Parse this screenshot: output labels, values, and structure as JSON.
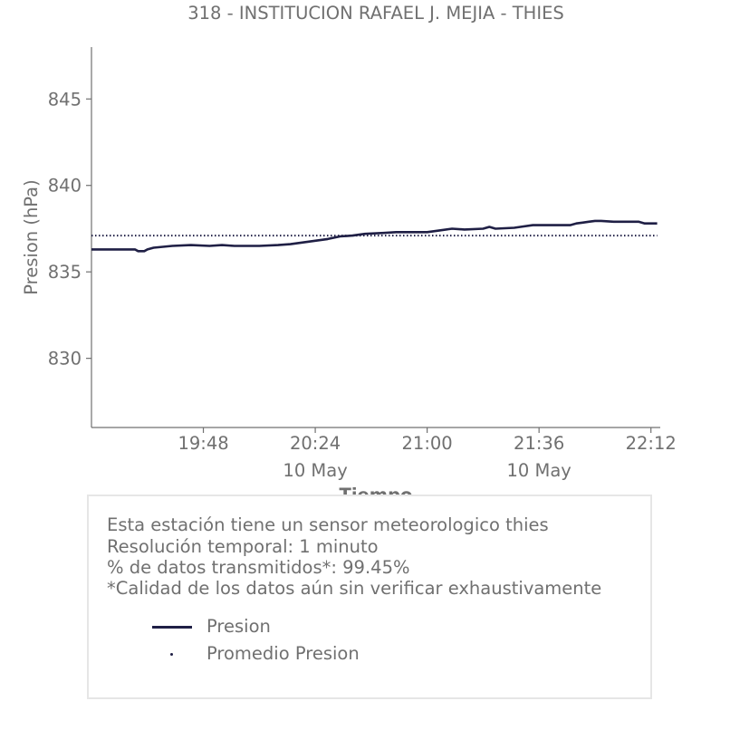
{
  "chart_data": {
    "type": "line",
    "title": "318 - INSTITUCION RAFAEL J. MEJIA - THIES",
    "xlabel": "Tiempo",
    "ylabel": "Presion (hPa)",
    "xlim": [
      "2024-05-10T19:12",
      "2024-05-10T22:15"
    ],
    "ylim": [
      826.0,
      848.0
    ],
    "yticks": [
      830,
      835,
      840,
      845
    ],
    "xticks": [
      {
        "time": "2024-05-10T19:48",
        "label": "19:48",
        "sublabel": ""
      },
      {
        "time": "2024-05-10T20:24",
        "label": "20:24",
        "sublabel": "10 May"
      },
      {
        "time": "2024-05-10T21:00",
        "label": "21:00",
        "sublabel": ""
      },
      {
        "time": "2024-05-10T21:36",
        "label": "21:36",
        "sublabel": "10 May"
      },
      {
        "time": "2024-05-10T22:12",
        "label": "22:12",
        "sublabel": ""
      }
    ],
    "series": [
      {
        "name": "Presion",
        "color": "#1f1f45",
        "style": "solid",
        "x": [
          "2024-05-10T19:12",
          "2024-05-10T19:26",
          "2024-05-10T19:27",
          "2024-05-10T19:29",
          "2024-05-10T19:30",
          "2024-05-10T19:32",
          "2024-05-10T19:38",
          "2024-05-10T19:44",
          "2024-05-10T19:50",
          "2024-05-10T19:54",
          "2024-05-10T19:58",
          "2024-05-10T20:06",
          "2024-05-10T20:12",
          "2024-05-10T20:16",
          "2024-05-10T20:20",
          "2024-05-10T20:24",
          "2024-05-10T20:28",
          "2024-05-10T20:32",
          "2024-05-10T20:36",
          "2024-05-10T20:40",
          "2024-05-10T20:46",
          "2024-05-10T20:50",
          "2024-05-10T21:00",
          "2024-05-10T21:04",
          "2024-05-10T21:08",
          "2024-05-10T21:12",
          "2024-05-10T21:18",
          "2024-05-10T21:20",
          "2024-05-10T21:22",
          "2024-05-10T21:28",
          "2024-05-10T21:30",
          "2024-05-10T21:34",
          "2024-05-10T21:46",
          "2024-05-10T21:48",
          "2024-05-10T21:50",
          "2024-05-10T21:52",
          "2024-05-10T21:54",
          "2024-05-10T21:56",
          "2024-05-10T22:00",
          "2024-05-10T22:08",
          "2024-05-10T22:10",
          "2024-05-10T22:14"
        ],
        "y": [
          836.3,
          836.3,
          836.2,
          836.2,
          836.3,
          836.4,
          836.5,
          836.55,
          836.5,
          836.55,
          836.5,
          836.5,
          836.55,
          836.6,
          836.7,
          836.8,
          836.9,
          837.05,
          837.1,
          837.2,
          837.25,
          837.3,
          837.3,
          837.4,
          837.5,
          837.45,
          837.5,
          837.6,
          837.5,
          837.55,
          837.6,
          837.7,
          837.7,
          837.8,
          837.85,
          837.9,
          837.95,
          837.95,
          837.9,
          837.9,
          837.8,
          837.8
        ]
      },
      {
        "name": "Promedio Presion",
        "color": "#1f1f45",
        "style": "dotted",
        "x": [
          "2024-05-10T19:12",
          "2024-05-10T22:14"
        ],
        "y": [
          837.1,
          837.1
        ]
      }
    ],
    "legend": "lower box",
    "grid": false
  },
  "info": {
    "lines": [
      "Esta estación tiene un sensor meteorologico thies",
      "Resolución temporal: 1 minuto",
      "% de datos transmitidos*: 99.45%",
      "*Calidad de los datos aún sin verificar exhaustivamente"
    ]
  }
}
